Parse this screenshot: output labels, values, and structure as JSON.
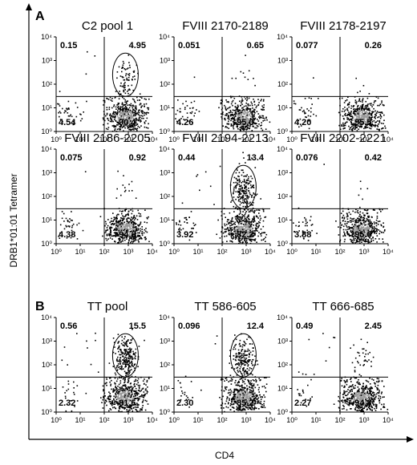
{
  "figure": {
    "section_labels": [
      "A",
      "B"
    ],
    "y_axis_title": "DRB1*01:01 Tetramer",
    "x_axis_title": "CD4"
  },
  "chart_data": [
    {
      "type": "scatter",
      "section": "A",
      "title": "C2 pool 1",
      "xlabel": "",
      "ylabel": "",
      "x_log": true,
      "y_log": true,
      "xlim": [
        1,
        10000
      ],
      "ylim": [
        1,
        10000
      ],
      "xticks": [
        "10⁰",
        "10¹",
        "10²",
        "10³",
        "10⁴"
      ],
      "yticks": [
        "10⁰",
        "10¹",
        "10²",
        "10³",
        "10⁴"
      ],
      "quadrants": {
        "upper_left": "0.15",
        "upper_right": "4.95",
        "lower_left": "4.54",
        "lower_right": "90.4"
      },
      "gate": true
    },
    {
      "type": "scatter",
      "section": "A",
      "title": "FVIII 2170-2189",
      "xlabel": "",
      "ylabel": "",
      "x_log": true,
      "y_log": true,
      "xlim": [
        1,
        10000
      ],
      "ylim": [
        1,
        10000
      ],
      "xticks": [
        "10⁰",
        "10¹",
        "10²",
        "10³",
        "10⁴"
      ],
      "yticks": [
        "10⁰",
        "10¹",
        "10²",
        "10³",
        "10⁴"
      ],
      "quadrants": {
        "upper_left": "0.051",
        "upper_right": "0.65",
        "lower_left": "4.26",
        "lower_right": "95.0"
      },
      "gate": false
    },
    {
      "type": "scatter",
      "section": "A",
      "title": "FVIII 2178-2197",
      "xlabel": "",
      "ylabel": "",
      "x_log": true,
      "y_log": true,
      "xlim": [
        1,
        10000
      ],
      "ylim": [
        1,
        10000
      ],
      "xticks": [
        "10⁰",
        "10¹",
        "10²",
        "10³",
        "10⁴"
      ],
      "yticks": [
        "10⁰",
        "10¹",
        "10²",
        "10³",
        "10⁴"
      ],
      "quadrants": {
        "upper_left": "0.077",
        "upper_right": "0.26",
        "lower_left": "4.20",
        "lower_right": "95.5"
      },
      "gate": false
    },
    {
      "type": "scatter",
      "section": "A",
      "title": "FVIII 2186-2205",
      "xlabel": "",
      "ylabel": "",
      "x_log": true,
      "y_log": true,
      "xlim": [
        1,
        10000
      ],
      "ylim": [
        1,
        10000
      ],
      "xticks": [
        "10⁰",
        "10¹",
        "10²",
        "10³",
        "10⁴"
      ],
      "yticks": [
        "10⁰",
        "10¹",
        "10²",
        "10³",
        "10⁴"
      ],
      "quadrants": {
        "upper_left": "0.075",
        "upper_right": "0.92",
        "lower_left": "4.38",
        "lower_right": "94.6"
      },
      "gate": false
    },
    {
      "type": "scatter",
      "section": "A",
      "title": "FVIII 2194-2213",
      "xlabel": "",
      "ylabel": "",
      "x_log": true,
      "y_log": true,
      "xlim": [
        1,
        10000
      ],
      "ylim": [
        1,
        10000
      ],
      "xticks": [
        "10⁰",
        "10¹",
        "10²",
        "10³",
        "10⁴"
      ],
      "yticks": [
        "10⁰",
        "10¹",
        "10²",
        "10³",
        "10⁴"
      ],
      "quadrants": {
        "upper_left": "0.44",
        "upper_right": "13.4",
        "lower_left": "3.92",
        "lower_right": "82.2"
      },
      "gate": true
    },
    {
      "type": "scatter",
      "section": "A",
      "title": "FVIII 2202-2221",
      "xlabel": "",
      "ylabel": "",
      "x_log": true,
      "y_log": true,
      "xlim": [
        1,
        10000
      ],
      "ylim": [
        1,
        10000
      ],
      "xticks": [
        "10⁰",
        "10¹",
        "10²",
        "10³",
        "10⁴"
      ],
      "yticks": [
        "10⁰",
        "10¹",
        "10²",
        "10³",
        "10⁴"
      ],
      "quadrants": {
        "upper_left": "0.076",
        "upper_right": "0.42",
        "lower_left": "3.88",
        "lower_right": "95.6"
      },
      "gate": false
    },
    {
      "type": "scatter",
      "section": "B",
      "title": "TT pool",
      "xlabel": "",
      "ylabel": "",
      "x_log": true,
      "y_log": true,
      "xlim": [
        1,
        10000
      ],
      "ylim": [
        1,
        10000
      ],
      "xticks": [
        "10⁰",
        "10¹",
        "10²",
        "10³",
        "10⁴"
      ],
      "yticks": [
        "10⁰",
        "10¹",
        "10²",
        "10³",
        "10⁴"
      ],
      "quadrants": {
        "upper_left": "0.56",
        "upper_right": "15.5",
        "lower_left": "2.32",
        "lower_right": "81.6"
      },
      "gate": true
    },
    {
      "type": "scatter",
      "section": "B",
      "title": "TT 586-605",
      "xlabel": "",
      "ylabel": "",
      "x_log": true,
      "y_log": true,
      "xlim": [
        1,
        10000
      ],
      "ylim": [
        1,
        10000
      ],
      "xticks": [
        "10⁰",
        "10¹",
        "10²",
        "10³",
        "10⁴"
      ],
      "yticks": [
        "10⁰",
        "10¹",
        "10²",
        "10³",
        "10⁴"
      ],
      "quadrants": {
        "upper_left": "0.096",
        "upper_right": "12.4",
        "lower_left": "2.30",
        "lower_right": "85.2"
      },
      "gate": true
    },
    {
      "type": "scatter",
      "section": "B",
      "title": "TT 666-685",
      "xlabel": "",
      "ylabel": "",
      "x_log": true,
      "y_log": true,
      "xlim": [
        1,
        10000
      ],
      "ylim": [
        1,
        10000
      ],
      "xticks": [
        "10⁰",
        "10¹",
        "10²",
        "10³",
        "10⁴"
      ],
      "yticks": [
        "10⁰",
        "10¹",
        "10²",
        "10³",
        "10⁴"
      ],
      "quadrants": {
        "upper_left": "0.49",
        "upper_right": "2.45",
        "lower_left": "2.27",
        "lower_right": "94.8"
      },
      "gate": false
    }
  ]
}
